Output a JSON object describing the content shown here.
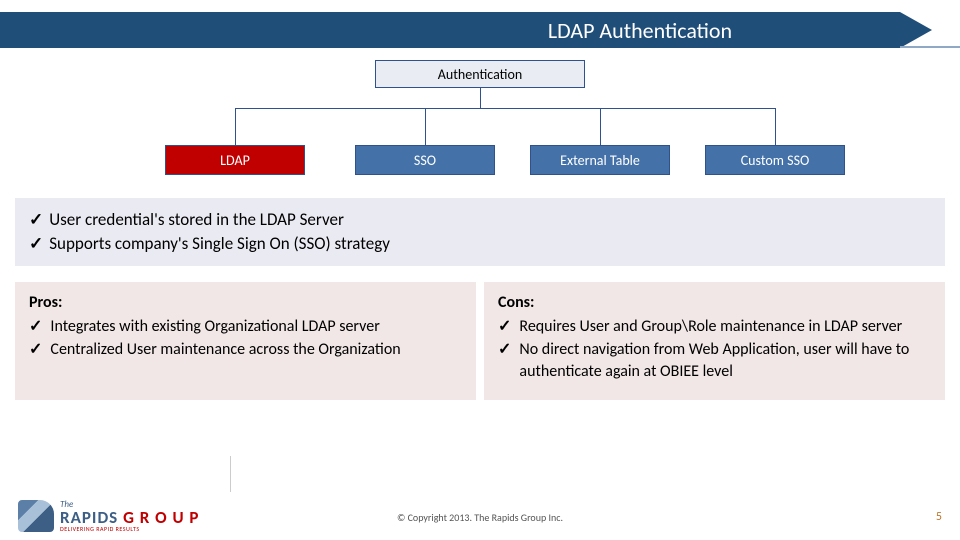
{
  "header": {
    "title": "LDAP Authentication"
  },
  "diagram": {
    "root": "Authentication",
    "nodes": {
      "ldap": "LDAP",
      "sso": "SSO",
      "ext": "External Table",
      "custom": "Custom SSO"
    },
    "colors": {
      "root_bg": "#e9edf3",
      "highlight_bg": "#c00000",
      "node_bg": "#4472a8",
      "border": "#2f528f"
    }
  },
  "features": {
    "items": [
      "User credential's stored in the LDAP Server",
      "Supports company's Single Sign On (SSO) strategy"
    ]
  },
  "pros": {
    "title": "Pros:",
    "items": [
      "Integrates with existing Organizational LDAP server",
      "Centralized User maintenance across the Organization"
    ]
  },
  "cons": {
    "title": "Cons:",
    "items": [
      "Requires User and Group\\Role maintenance in LDAP server",
      "No direct navigation from Web Application,  user will have to authenticate again at OBIEE level"
    ]
  },
  "footer": {
    "logo_the": "The",
    "logo_main_1": "RAPIDS",
    "logo_main_2": "G R O U P",
    "logo_sub": "DELIVERING RAPID RESULTS",
    "copyright": "© Copyright 2013. The Rapids Group Inc.",
    "page": "5"
  }
}
